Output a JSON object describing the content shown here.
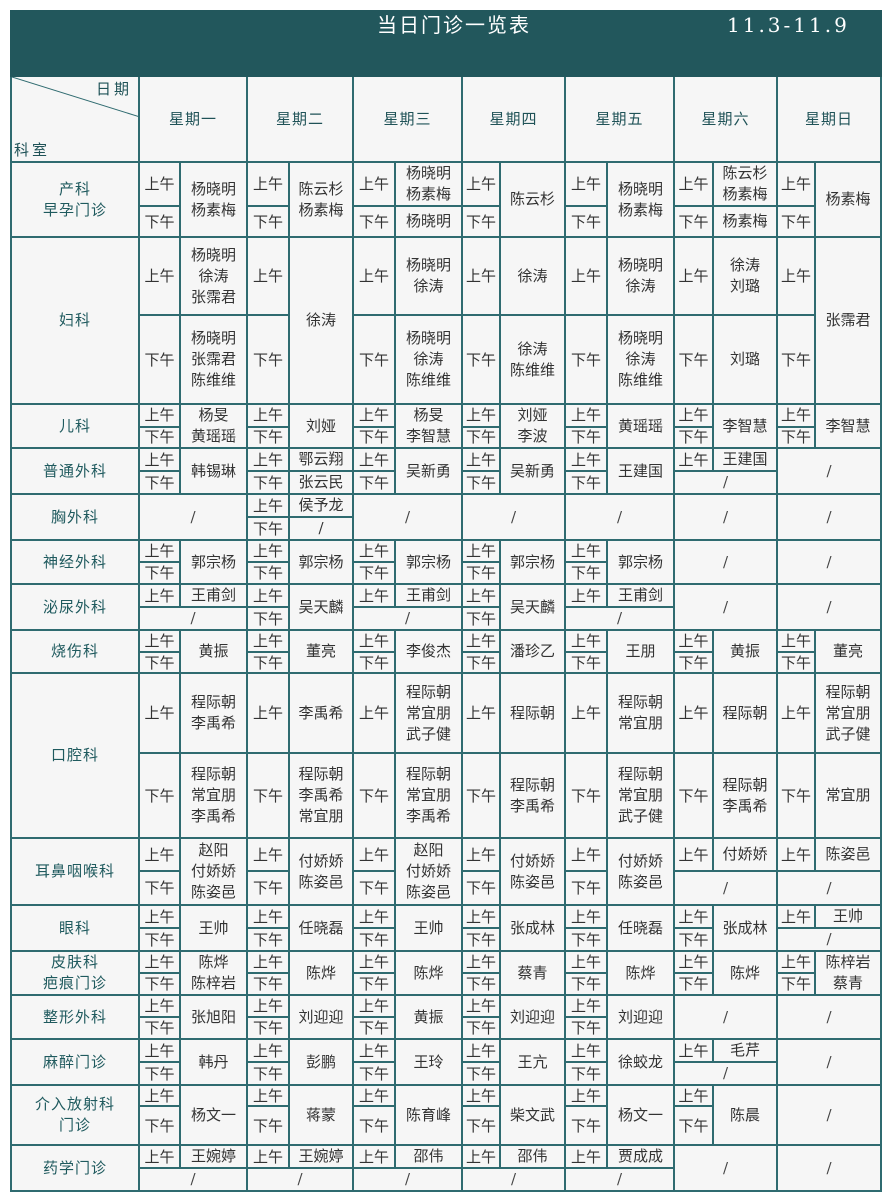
{
  "title": "当日门诊一览表",
  "date_range": "11.3-11.9",
  "header": {
    "date_label": "日期",
    "dept_label": "科室",
    "days": [
      "星期一",
      "星期二",
      "星期三",
      "星期四",
      "星期五",
      "星期六",
      "星期日"
    ]
  },
  "labels": {
    "am": "上午",
    "pm": "下午",
    "none": "/"
  },
  "colors": {
    "header_bg": "#22575c",
    "border": "#2f6b70",
    "cell_bg": "#f6f6f6",
    "dept_text": "#1f5a5e"
  },
  "departments": [
    {
      "name": "产科\n早孕门诊",
      "days": [
        {
          "type": "m",
          "names": "杨晓明\n杨素梅"
        },
        {
          "type": "m",
          "names": "陈云杉\n杨素梅"
        },
        {
          "type": "s",
          "am": "杨晓明\n杨素梅",
          "pm": "杨晓明"
        },
        {
          "type": "m",
          "names": "陈云杉"
        },
        {
          "type": "m",
          "names": "杨晓明\n杨素梅"
        },
        {
          "type": "s",
          "am": "陈云杉\n杨素梅",
          "pm": "杨素梅"
        },
        {
          "type": "m",
          "names": "杨素梅"
        }
      ]
    },
    {
      "name": "妇科",
      "days": [
        {
          "type": "s",
          "am": "杨晓明\n徐涛\n张霈君",
          "pm": "杨晓明\n张霈君\n陈维维"
        },
        {
          "type": "m",
          "names": "徐涛"
        },
        {
          "type": "s",
          "am": "杨晓明\n徐涛",
          "pm": "杨晓明\n徐涛\n陈维维"
        },
        {
          "type": "s",
          "am": "徐涛",
          "pm": "徐涛\n陈维维"
        },
        {
          "type": "s",
          "am": "杨晓明\n徐涛",
          "pm": "杨晓明\n徐涛\n陈维维"
        },
        {
          "type": "s",
          "am": "徐涛\n刘璐",
          "pm": "刘璐"
        },
        {
          "type": "m",
          "names": "张霈君"
        }
      ]
    },
    {
      "name": "儿科",
      "days": [
        {
          "type": "m",
          "names": "杨旻\n黄瑶瑶"
        },
        {
          "type": "m",
          "names": "刘娅"
        },
        {
          "type": "m",
          "names": "杨旻\n李智慧"
        },
        {
          "type": "m",
          "names": "刘娅\n李波"
        },
        {
          "type": "m",
          "names": "黄瑶瑶"
        },
        {
          "type": "m",
          "names": "李智慧"
        },
        {
          "type": "m",
          "names": "李智慧"
        }
      ]
    },
    {
      "name": "普通外科",
      "days": [
        {
          "type": "m",
          "names": "韩锡琳"
        },
        {
          "type": "s",
          "am": "鄂云翔",
          "pm": "张云民"
        },
        {
          "type": "m",
          "names": "吴新勇"
        },
        {
          "type": "m",
          "names": "吴新勇"
        },
        {
          "type": "m",
          "names": "王建国"
        },
        {
          "type": "a",
          "am": "王建国"
        },
        {
          "type": "n"
        }
      ]
    },
    {
      "name": "胸外科",
      "days": [
        {
          "type": "n"
        },
        {
          "type": "s",
          "am": "侯予龙",
          "pm": "/"
        },
        {
          "type": "n"
        },
        {
          "type": "n"
        },
        {
          "type": "n"
        },
        {
          "type": "n"
        },
        {
          "type": "n"
        }
      ]
    },
    {
      "name": "神经外科",
      "days": [
        {
          "type": "m",
          "names": "郭宗杨"
        },
        {
          "type": "m",
          "names": "郭宗杨"
        },
        {
          "type": "m",
          "names": "郭宗杨"
        },
        {
          "type": "m",
          "names": "郭宗杨"
        },
        {
          "type": "m",
          "names": "郭宗杨"
        },
        {
          "type": "n"
        },
        {
          "type": "n"
        }
      ]
    },
    {
      "name": "泌尿外科",
      "days": [
        {
          "type": "a",
          "am": "王甫剑"
        },
        {
          "type": "m",
          "names": "吴天麟"
        },
        {
          "type": "a",
          "am": "王甫剑"
        },
        {
          "type": "m",
          "names": "吴天麟"
        },
        {
          "type": "a",
          "am": "王甫剑"
        },
        {
          "type": "n"
        },
        {
          "type": "n"
        }
      ]
    },
    {
      "name": "烧伤科",
      "days": [
        {
          "type": "m",
          "names": "黄振"
        },
        {
          "type": "m",
          "names": "董亮"
        },
        {
          "type": "m",
          "names": "李俊杰"
        },
        {
          "type": "m",
          "names": "潘珍乙"
        },
        {
          "type": "m",
          "names": "王朋"
        },
        {
          "type": "m",
          "names": "黄振"
        },
        {
          "type": "m",
          "names": "董亮"
        }
      ]
    },
    {
      "name": "口腔科",
      "days": [
        {
          "type": "s",
          "am": "程际朝\n李禹希",
          "pm": "程际朝\n常宜朋\n李禹希"
        },
        {
          "type": "s",
          "am": "李禹希",
          "pm": "程际朝\n李禹希\n常宜朋"
        },
        {
          "type": "s",
          "am": "程际朝\n常宜朋\n武子健",
          "pm": "程际朝\n常宜朋\n李禹希"
        },
        {
          "type": "s",
          "am": "程际朝",
          "pm": "程际朝\n李禹希"
        },
        {
          "type": "s",
          "am": "程际朝\n常宜朋",
          "pm": "程际朝\n常宜朋\n武子健"
        },
        {
          "type": "s",
          "am": "程际朝",
          "pm": "程际朝\n李禹希"
        },
        {
          "type": "s",
          "am": "程际朝\n常宜朋\n武子健",
          "pm": "常宜朋"
        }
      ]
    },
    {
      "name": "耳鼻咽喉科",
      "days": [
        {
          "type": "m",
          "names": "赵阳\n付娇娇\n陈姿邑"
        },
        {
          "type": "m",
          "names": "付娇娇\n陈姿邑"
        },
        {
          "type": "m",
          "names": "赵阳\n付娇娇\n陈姿邑"
        },
        {
          "type": "m",
          "names": "付娇娇\n陈姿邑"
        },
        {
          "type": "m",
          "names": "付娇娇\n陈姿邑"
        },
        {
          "type": "a",
          "am": "付娇娇"
        },
        {
          "type": "a",
          "am": "陈姿邑"
        }
      ]
    },
    {
      "name": "眼科",
      "days": [
        {
          "type": "m",
          "names": "王帅"
        },
        {
          "type": "m",
          "names": "任晓磊"
        },
        {
          "type": "m",
          "names": "王帅"
        },
        {
          "type": "m",
          "names": "张成林"
        },
        {
          "type": "m",
          "names": "任晓磊"
        },
        {
          "type": "m",
          "names": "张成林"
        },
        {
          "type": "a",
          "am": "王帅"
        }
      ]
    },
    {
      "name": "皮肤科\n疤痕门诊",
      "days": [
        {
          "type": "m",
          "names": "陈烨\n陈梓岩"
        },
        {
          "type": "m",
          "names": "陈烨"
        },
        {
          "type": "m",
          "names": "陈烨"
        },
        {
          "type": "m",
          "names": "蔡青"
        },
        {
          "type": "m",
          "names": "陈烨"
        },
        {
          "type": "m",
          "names": "陈烨"
        },
        {
          "type": "m",
          "names": "陈梓岩\n蔡青"
        }
      ]
    },
    {
      "name": "整形外科",
      "days": [
        {
          "type": "m",
          "names": "张旭阳"
        },
        {
          "type": "m",
          "names": "刘迎迎"
        },
        {
          "type": "m",
          "names": "黄振"
        },
        {
          "type": "m",
          "names": "刘迎迎"
        },
        {
          "type": "m",
          "names": "刘迎迎"
        },
        {
          "type": "n"
        },
        {
          "type": "n"
        }
      ]
    },
    {
      "name": "麻醉门诊",
      "days": [
        {
          "type": "m",
          "names": "韩丹"
        },
        {
          "type": "m",
          "names": "彭鹏"
        },
        {
          "type": "m",
          "names": "王玲"
        },
        {
          "type": "m",
          "names": "王亢"
        },
        {
          "type": "m",
          "names": "徐蛟龙"
        },
        {
          "type": "a",
          "am": "毛芹"
        },
        {
          "type": "n"
        }
      ]
    },
    {
      "name": "介入放射科\n门诊",
      "days": [
        {
          "type": "m",
          "names": "杨文一"
        },
        {
          "type": "m",
          "names": "蒋蒙"
        },
        {
          "type": "m",
          "names": "陈育峰"
        },
        {
          "type": "m",
          "names": "柴文武"
        },
        {
          "type": "m",
          "names": "杨文一"
        },
        {
          "type": "m",
          "names": "陈晨"
        },
        {
          "type": "n"
        }
      ]
    },
    {
      "name": "药学门诊",
      "days": [
        {
          "type": "a",
          "am": "王婉婷"
        },
        {
          "type": "a",
          "am": "王婉婷"
        },
        {
          "type": "a",
          "am": "邵伟"
        },
        {
          "type": "a",
          "am": "邵伟"
        },
        {
          "type": "a",
          "am": "贾成成"
        },
        {
          "type": "n"
        },
        {
          "type": "n"
        }
      ]
    }
  ]
}
